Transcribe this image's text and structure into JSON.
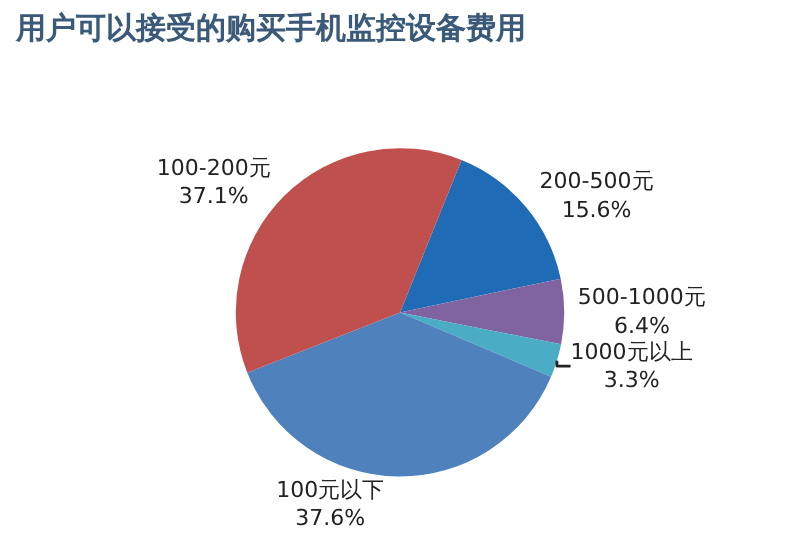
{
  "chart_data": {
    "type": "pie",
    "title": "用户可以接受的购买手机监控设备费用",
    "categories": [
      "200-500元",
      "500-1000元",
      "1000元以上",
      "100元以下",
      "100-200元"
    ],
    "values": [
      15.6,
      6.4,
      3.3,
      37.6,
      37.1
    ],
    "colors": [
      "#1f6bb5",
      "#8064a2",
      "#4bacc6",
      "#4f81bd",
      "#c0504d"
    ],
    "value_labels": [
      "15.6%",
      "6.4%",
      "3.3%",
      "37.6%",
      "37.1%"
    ],
    "legend": false
  }
}
